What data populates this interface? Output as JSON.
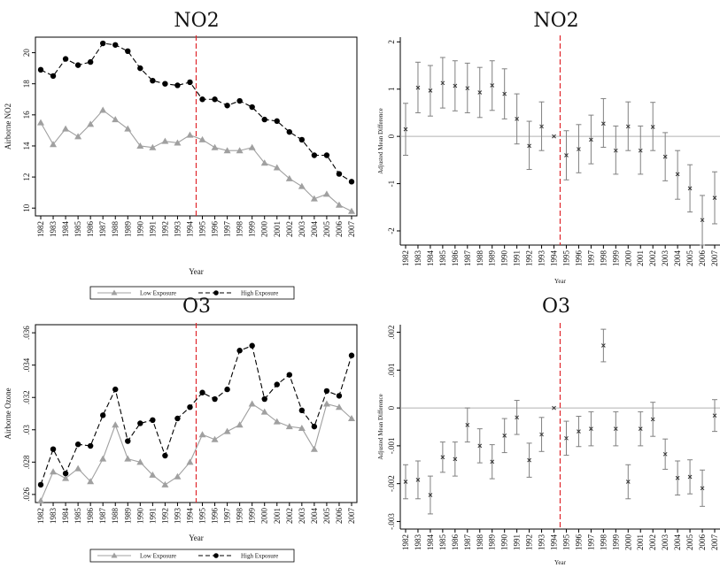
{
  "chart_data": [
    {
      "type": "line",
      "title": "NO2",
      "xlabel": "Year",
      "ylabel": "Airborne NO2",
      "ylim": [
        9.5,
        21
      ],
      "yticks": [
        "10",
        "12",
        "14",
        "16",
        "18",
        "20"
      ],
      "x": [
        "1982",
        "1983",
        "1984",
        "1985",
        "1986",
        "1987",
        "1988",
        "1989",
        "1990",
        "1991",
        "1992",
        "1993",
        "1994",
        "1995",
        "1996",
        "1997",
        "1998",
        "1999",
        "2000",
        "2001",
        "2002",
        "2003",
        "2004",
        "2005",
        "2006",
        "2007"
      ],
      "series": [
        {
          "name": "Low Exposure",
          "color": "#a0a0a0",
          "values": [
            15.5,
            14.1,
            15.1,
            14.6,
            15.4,
            16.3,
            15.7,
            15.1,
            14.0,
            13.9,
            14.3,
            14.2,
            14.7,
            14.4,
            13.9,
            13.7,
            13.7,
            13.9,
            12.9,
            12.6,
            11.9,
            11.4,
            10.6,
            10.9,
            10.2,
            9.8
          ]
        },
        {
          "name": "High Exposure",
          "color": "#000000",
          "values": [
            18.9,
            18.5,
            19.6,
            19.2,
            19.4,
            20.6,
            20.5,
            20.1,
            19.0,
            18.2,
            18.0,
            17.9,
            18.1,
            17.0,
            17.0,
            16.6,
            16.9,
            16.5,
            15.7,
            15.6,
            14.9,
            14.4,
            13.4,
            13.4,
            12.2,
            11.7
          ]
        }
      ],
      "legend": "bottom",
      "reference_line_after": "1994"
    },
    {
      "type": "scatter",
      "title": "NO2",
      "xlabel": "Year",
      "ylabel": "Adjusted Mean Difference",
      "ylim": [
        -2.3,
        2.1
      ],
      "yticks": [
        "-2",
        "-1",
        "0",
        "1",
        "2"
      ],
      "x": [
        "1982",
        "1983",
        "1984",
        "1985",
        "1986",
        "1987",
        "1988",
        "1989",
        "1990",
        "1991",
        "1992",
        "1993",
        "1994",
        "1995",
        "1996",
        "1997",
        "1998",
        "1999",
        "2000",
        "2001",
        "2002",
        "2003",
        "2004",
        "2005",
        "2006",
        "2007"
      ],
      "estimate": [
        0.15,
        1.03,
        0.97,
        1.13,
        1.07,
        1.02,
        0.93,
        1.08,
        0.9,
        0.37,
        -0.2,
        0.21,
        0.0,
        -0.4,
        -0.27,
        -0.07,
        0.27,
        -0.3,
        0.21,
        -0.3,
        0.2,
        -0.43,
        -0.8,
        -1.1,
        -1.77,
        -1.3
      ],
      "ci_low": [
        -0.4,
        0.5,
        0.43,
        0.6,
        0.54,
        0.5,
        0.4,
        0.55,
        0.37,
        -0.16,
        -0.7,
        -0.3,
        0.0,
        -0.92,
        -0.77,
        -0.58,
        -0.23,
        -0.8,
        -0.3,
        -0.8,
        -0.3,
        -0.94,
        -1.33,
        -1.6,
        -2.3,
        -1.85
      ],
      "ci_high": [
        0.7,
        1.57,
        1.5,
        1.67,
        1.6,
        1.55,
        1.46,
        1.6,
        1.43,
        0.9,
        0.32,
        0.73,
        0.0,
        0.12,
        0.25,
        0.45,
        0.8,
        0.22,
        0.73,
        0.22,
        0.72,
        0.08,
        -0.3,
        -0.6,
        -1.25,
        -0.75
      ],
      "reference_line_after": "1994"
    },
    {
      "type": "line",
      "title": "O3",
      "xlabel": "Year",
      "ylabel": "Airborne Ozone",
      "ylim": [
        0.0255,
        0.0365
      ],
      "yticks": [
        ".026",
        ".028",
        ".03",
        ".032",
        ".034",
        ".036"
      ],
      "x": [
        "1982",
        "1983",
        "1984",
        "1985",
        "1986",
        "1987",
        "1988",
        "1989",
        "1990",
        "1991",
        "1992",
        "1993",
        "1994",
        "1995",
        "1996",
        "1997",
        "1998",
        "1999",
        "2000",
        "2001",
        "2002",
        "2003",
        "2004",
        "2005",
        "2006",
        "2007"
      ],
      "series": [
        {
          "name": "Low Exposure",
          "color": "#a0a0a0",
          "values": [
            0.0256,
            0.0274,
            0.027,
            0.0276,
            0.0268,
            0.0282,
            0.0303,
            0.0282,
            0.028,
            0.0272,
            0.0266,
            0.0271,
            0.028,
            0.0297,
            0.0294,
            0.0299,
            0.0303,
            0.0316,
            0.0311,
            0.0305,
            0.0302,
            0.0301,
            0.0288,
            0.0316,
            0.0314,
            0.0307
          ]
        },
        {
          "name": "High Exposure",
          "color": "#000000",
          "values": [
            0.0266,
            0.0288,
            0.0273,
            0.0291,
            0.029,
            0.0309,
            0.0325,
            0.0293,
            0.0304,
            0.0306,
            0.0284,
            0.0307,
            0.0314,
            0.0323,
            0.0319,
            0.0325,
            0.0349,
            0.0352,
            0.0319,
            0.0328,
            0.0334,
            0.0312,
            0.0302,
            0.0324,
            0.0321,
            0.0346
          ]
        }
      ],
      "legend": "bottom",
      "reference_line_after": "1994"
    },
    {
      "type": "scatter",
      "title": "O3",
      "xlabel": "Year",
      "ylabel": "Adjusted Mean Difference",
      "ylim": [
        -0.0032,
        0.0022
      ],
      "yticks": [
        "-.003",
        "-.002",
        "-.001",
        "0",
        ".001",
        ".002"
      ],
      "x": [
        "1982",
        "1983",
        "1984",
        "1985",
        "1986",
        "1987",
        "1988",
        "1989",
        "1990",
        "1991",
        "1992",
        "1993",
        "1994",
        "1995",
        "1996",
        "1997",
        "1998",
        "1999",
        "2000",
        "2001",
        "2002",
        "2003",
        "2004",
        "2005",
        "2006",
        "2007"
      ],
      "estimate": [
        -0.00195,
        -0.0019,
        -0.0023,
        -0.0013,
        -0.00135,
        -0.00045,
        -0.001,
        -0.00142,
        -0.00073,
        -0.00025,
        -0.00138,
        -0.0007,
        0.0,
        -0.0008,
        -0.00062,
        -0.00055,
        0.00165,
        -0.00055,
        -0.00195,
        -0.00055,
        -0.0003,
        -0.00122,
        -0.00185,
        -0.00182,
        -0.00212,
        -0.0002
      ],
      "ci_low": [
        -0.0024,
        -0.0024,
        -0.0028,
        -0.0017,
        -0.0018,
        -0.0009,
        -0.00145,
        -0.00187,
        -0.00118,
        -0.0007,
        -0.00183,
        -0.00115,
        0.0,
        -0.00125,
        -0.00102,
        -0.001,
        0.00122,
        -0.001,
        -0.0024,
        -0.001,
        -0.00075,
        -0.00162,
        -0.0023,
        -0.00227,
        -0.0026,
        -0.00062
      ],
      "ci_high": [
        -0.0015,
        -0.0014,
        -0.0018,
        -0.0009,
        -0.0009,
        0.0,
        -0.00055,
        -0.00097,
        -0.00028,
        0.0002,
        -0.00093,
        -0.00025,
        0.0,
        -0.00035,
        -0.00022,
        -0.0001,
        0.00208,
        -0.0001,
        -0.0015,
        -0.0001,
        0.00015,
        -0.00082,
        -0.0014,
        -0.00137,
        -0.00164,
        0.00022
      ],
      "reference_line_after": "1994"
    }
  ],
  "legend": {
    "low_label": "Low Exposure",
    "high_label": "High Exposure"
  }
}
